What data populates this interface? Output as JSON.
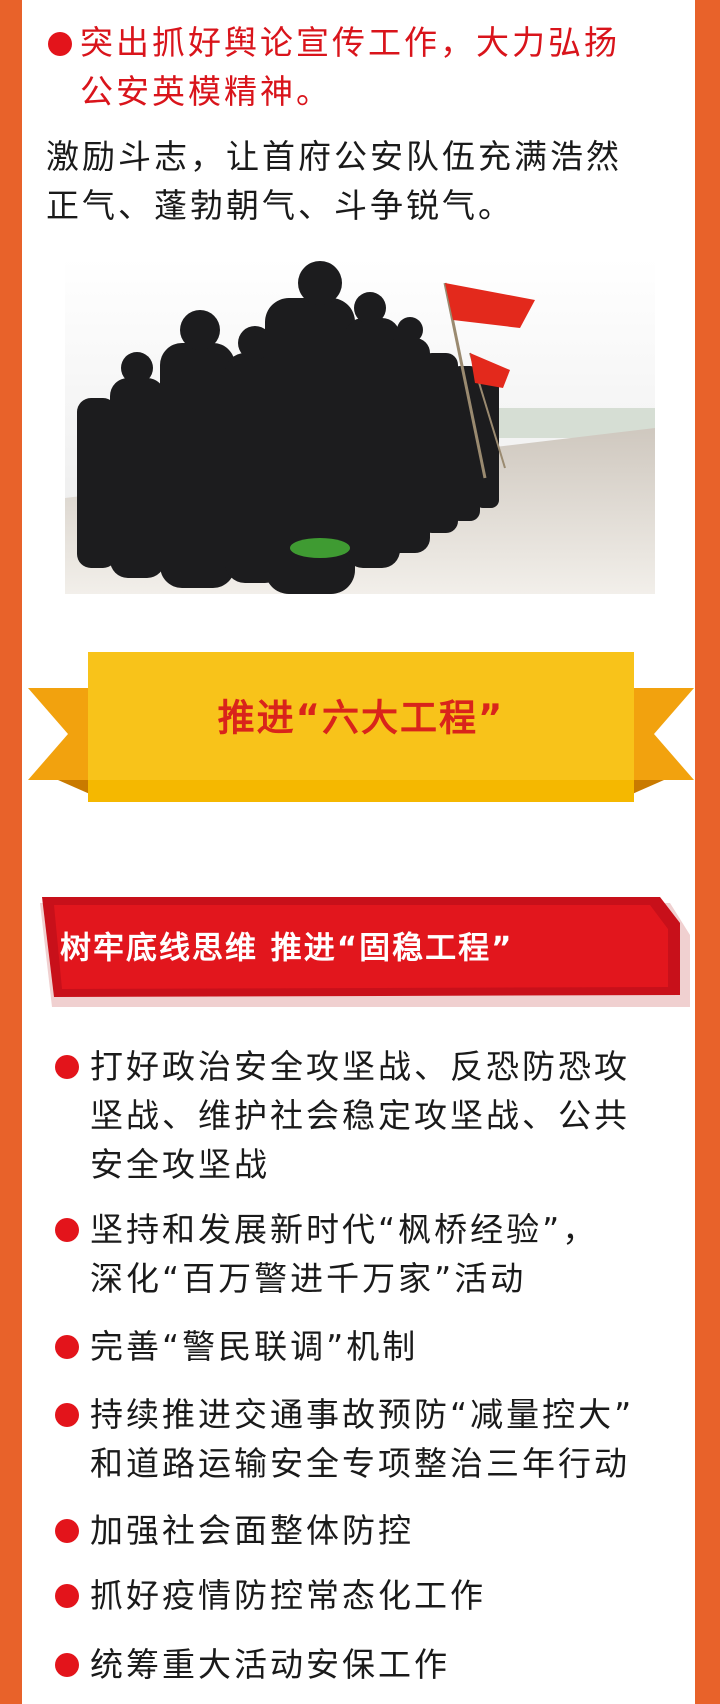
{
  "intro": {
    "bullet": [
      "突出抓好舆论宣传工作，大力弘扬",
      "公安英模精神。"
    ],
    "paragraph": [
      "激励斗志，让首府公安队伍充满浩然",
      "正气、蓬勃朝气、斗争锐气。"
    ]
  },
  "banner": {
    "title": "推进“六大工程”"
  },
  "section": {
    "heading": "树牢底线思维  推进“固稳工程”",
    "items": [
      [
        "打好政治安全攻坚战、反恐防恐攻",
        "坚战、维护社会稳定攻坚战、公共",
        "安全攻坚战"
      ],
      [
        "坚持和发展新时代“枫桥经验”，",
        "深化“百万警进千万家”活动"
      ],
      [
        "完善“警民联调”机制"
      ],
      [
        "持续推进交通事故预防“减量控大”",
        "和道路运输安全专项整治三年行动"
      ],
      [
        "加强社会面整体防控"
      ],
      [
        "抓好疫情防控常态化工作"
      ],
      [
        "统筹重大活动安保工作"
      ]
    ]
  }
}
